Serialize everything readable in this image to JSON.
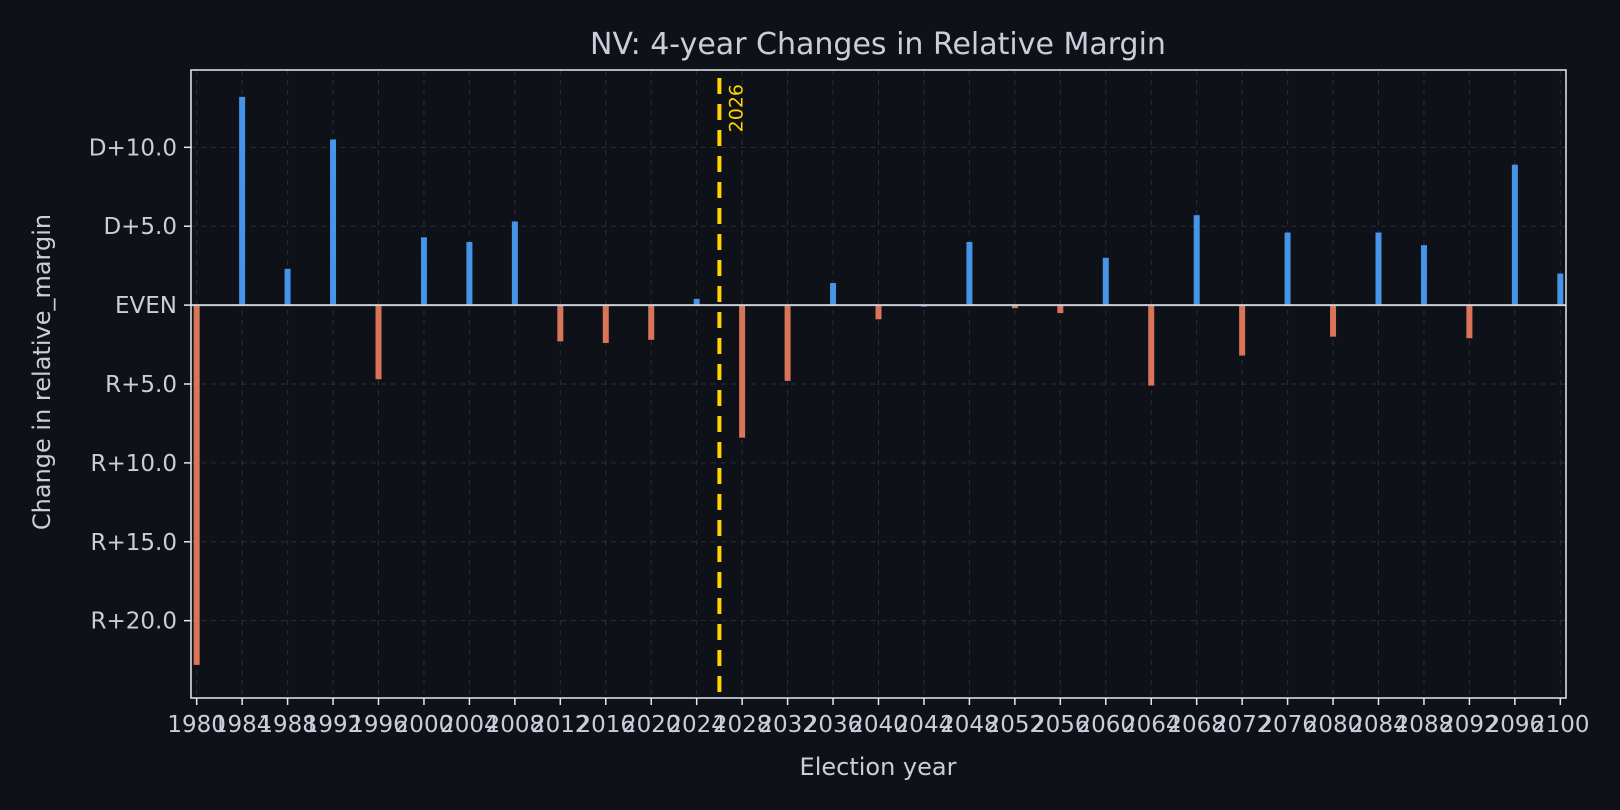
{
  "colors": {
    "background": "#0e1117",
    "axes_frame": "#e6e9ee",
    "text": "#c9ced8",
    "grid": "#2a2f38",
    "positive_bar": "#4da3ff",
    "negative_bar": "#f08060",
    "zero_line": "#c9ced8",
    "marker_line": "#ffd400"
  },
  "chart_data": {
    "type": "bar",
    "title": "NV: 4-year Changes in Relative Margin",
    "xlabel": "Election year",
    "ylabel": "Change in relative_margin",
    "x": [
      1980,
      1984,
      1988,
      1992,
      1996,
      2000,
      2004,
      2008,
      2012,
      2016,
      2020,
      2024,
      2028,
      2032,
      2036,
      2040,
      2044,
      2048,
      2052,
      2056,
      2060,
      2064,
      2068,
      2072,
      2076,
      2080,
      2084,
      2088,
      2092,
      2096,
      2100
    ],
    "values": [
      -22.8,
      13.2,
      2.3,
      10.5,
      -4.7,
      4.3,
      4.0,
      5.3,
      -2.3,
      -2.4,
      -2.2,
      0.4,
      -8.4,
      -4.8,
      1.4,
      -0.9,
      0.0,
      4.0,
      -0.2,
      -0.5,
      3.0,
      -5.1,
      5.7,
      -3.2,
      4.6,
      -2.0,
      4.6,
      3.8,
      -2.1,
      8.9,
      2.0
    ],
    "xlim": [
      1979.5,
      2100.5
    ],
    "ylim": [
      -24.9,
      14.9
    ],
    "xticks": [
      1980,
      1984,
      1988,
      1992,
      1996,
      2000,
      2004,
      2008,
      2012,
      2016,
      2020,
      2024,
      2028,
      2032,
      2036,
      2040,
      2044,
      2048,
      2052,
      2056,
      2060,
      2064,
      2068,
      2072,
      2076,
      2080,
      2084,
      2088,
      2092,
      2096,
      2100
    ],
    "yticks": [
      {
        "value": 10,
        "label": "D+10.0"
      },
      {
        "value": 5,
        "label": "D+5.0"
      },
      {
        "value": 0,
        "label": "EVEN"
      },
      {
        "value": -5,
        "label": "R+5.0"
      },
      {
        "value": -10,
        "label": "R+10.0"
      },
      {
        "value": -15,
        "label": "R+15.0"
      },
      {
        "value": -20,
        "label": "R+20.0"
      }
    ],
    "grid": true,
    "legend": "none",
    "marker": {
      "x": 2026,
      "label": "2026",
      "style": "dashed"
    }
  }
}
